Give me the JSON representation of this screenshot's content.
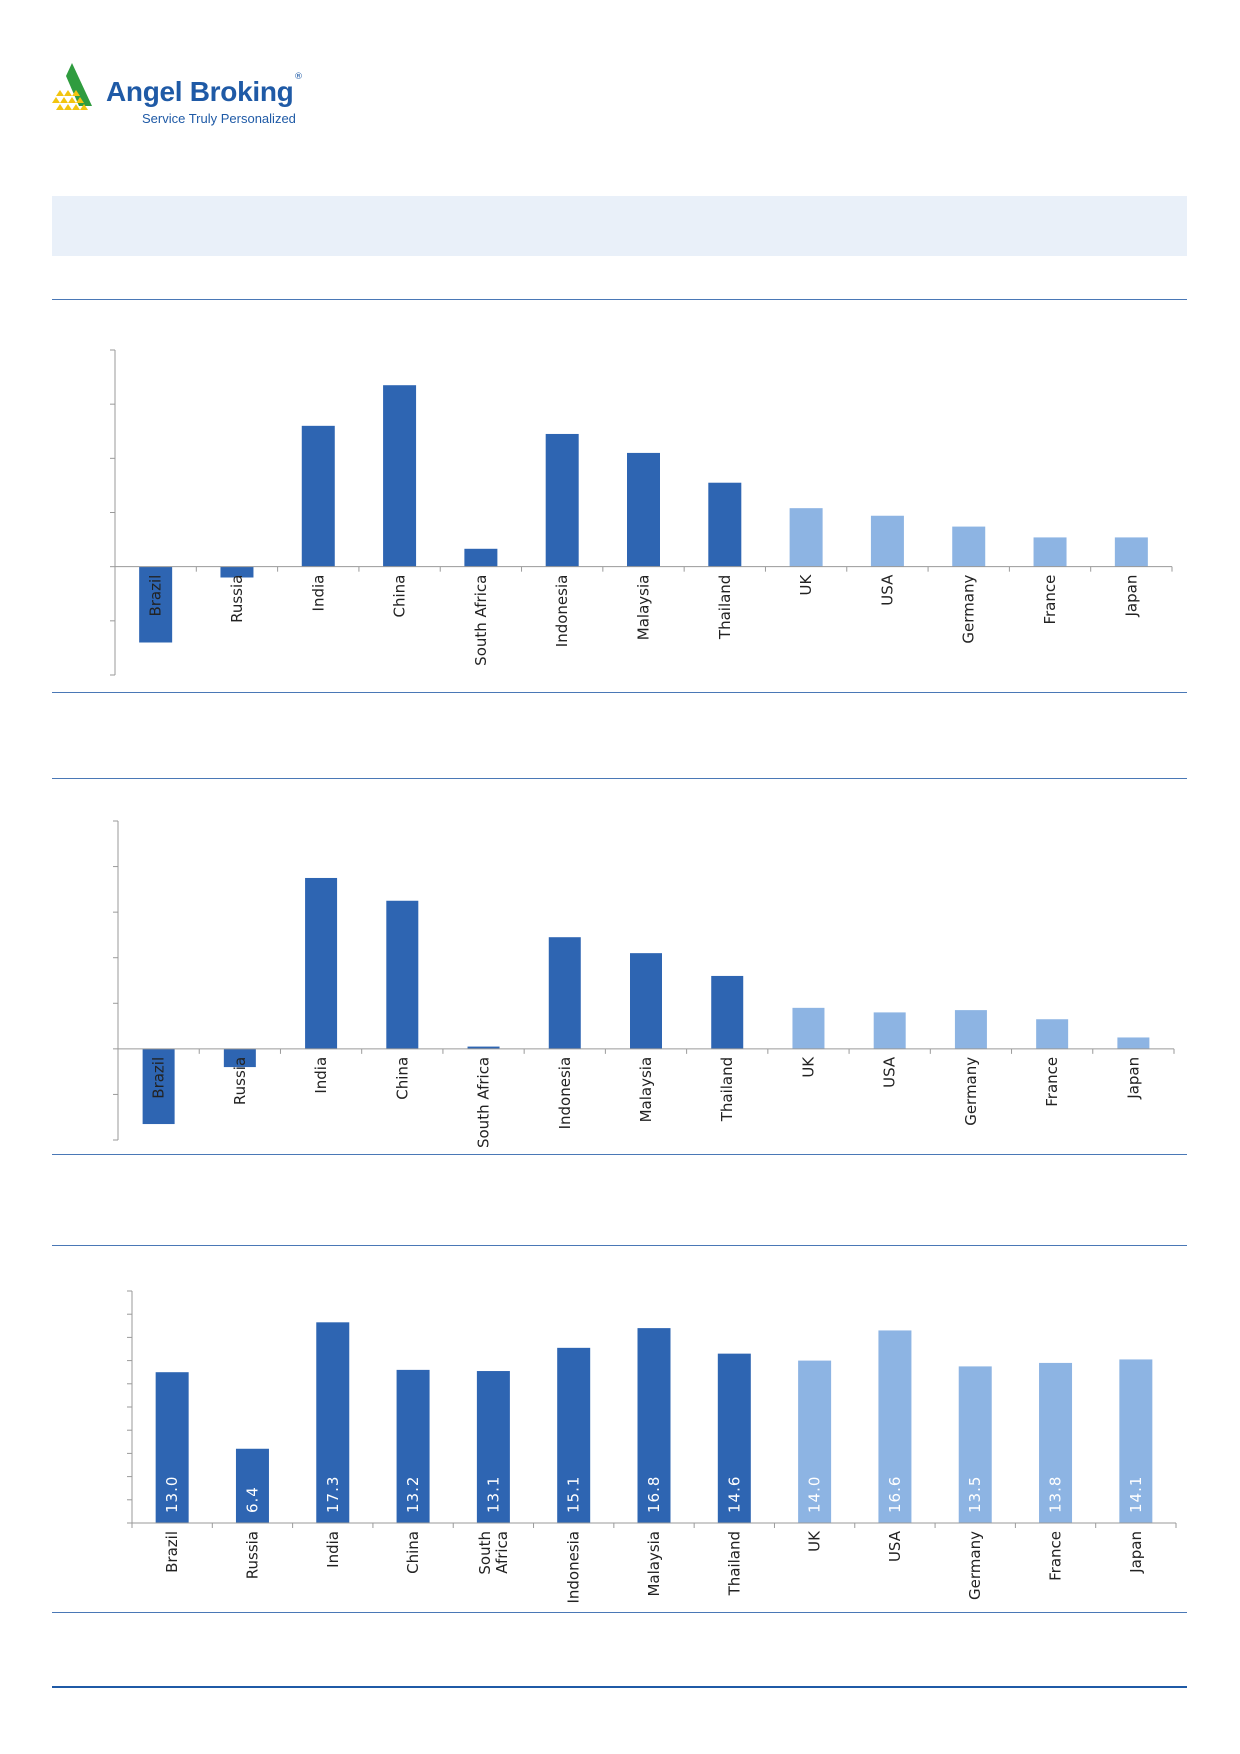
{
  "header": {
    "logo_name": "Angel Broking",
    "logo_registered": "®",
    "logo_tagline": "Service Truly Personalized"
  },
  "colors": {
    "emerging": "#2e65b2",
    "developed": "#8db4e3",
    "rule": "#4a78b6",
    "banner": "#e9f0f9"
  },
  "chart_data": [
    {
      "type": "bar",
      "categories": [
        "Brazil",
        "Russia",
        "India",
        "China",
        "South Africa",
        "Indonesia",
        "Malaysia",
        "Thailand",
        "UK",
        "USA",
        "Germany",
        "France",
        "Japan"
      ],
      "series": [
        {
          "values": [
            -14,
            -2,
            26,
            33.5,
            3.3,
            24.5,
            21,
            15.5,
            10.8,
            9.4,
            7.4,
            5.4,
            5.4
          ],
          "groups": [
            "emerging",
            "emerging",
            "emerging",
            "emerging",
            "emerging",
            "emerging",
            "emerging",
            "emerging",
            "developed",
            "developed",
            "developed",
            "developed",
            "developed"
          ]
        }
      ],
      "ylim": [
        -20,
        40
      ],
      "yticks": [
        -20,
        -10,
        0,
        10,
        20,
        30,
        40
      ],
      "labels_inside": false
    },
    {
      "type": "bar",
      "categories": [
        "Brazil",
        "Russia",
        "India",
        "China",
        "South Africa",
        "Indonesia",
        "Malaysia",
        "Thailand",
        "UK",
        "USA",
        "Germany",
        "France",
        "Japan"
      ],
      "series": [
        {
          "values": [
            -16.5,
            -4,
            37.5,
            32.5,
            0.5,
            24.5,
            21,
            16,
            9,
            8,
            8.5,
            6.5,
            2.5
          ],
          "groups": [
            "emerging",
            "emerging",
            "emerging",
            "emerging",
            "emerging",
            "emerging",
            "emerging",
            "emerging",
            "developed",
            "developed",
            "developed",
            "developed",
            "developed"
          ]
        }
      ],
      "ylim": [
        -20,
        50
      ],
      "yticks": [
        -20,
        -10,
        0,
        10,
        20,
        30,
        40,
        50
      ],
      "labels_inside": false
    },
    {
      "type": "bar",
      "categories": [
        "Brazil",
        "Russia",
        "India",
        "China",
        "South Africa",
        "Indonesia",
        "Malaysia",
        "Thailand",
        "UK",
        "USA",
        "Germany",
        "France",
        "Japan"
      ],
      "category_lines": [
        [
          "Brazil"
        ],
        [
          "Russia"
        ],
        [
          "India"
        ],
        [
          "China"
        ],
        [
          "South",
          "Africa"
        ],
        [
          "Indonesia"
        ],
        [
          "Malaysia"
        ],
        [
          "Thailand"
        ],
        [
          "UK"
        ],
        [
          "USA"
        ],
        [
          "Germany"
        ],
        [
          "France"
        ],
        [
          "Japan"
        ]
      ],
      "series": [
        {
          "values": [
            13.0,
            6.4,
            17.3,
            13.2,
            13.1,
            15.1,
            16.8,
            14.6,
            14.0,
            16.6,
            13.5,
            13.8,
            14.1
          ],
          "value_labels": [
            "13.0",
            "6.4",
            "17.3",
            "13.2",
            "13.1",
            "15.1",
            "16.8",
            "14.6",
            "14.0",
            "16.6",
            "13.5",
            "13.8",
            "14.1"
          ],
          "groups": [
            "emerging",
            "emerging",
            "emerging",
            "emerging",
            "emerging",
            "emerging",
            "emerging",
            "emerging",
            "developed",
            "developed",
            "developed",
            "developed",
            "developed"
          ]
        }
      ],
      "ylim": [
        0,
        20
      ],
      "yticks": [
        0,
        2,
        4,
        6,
        8,
        10,
        12,
        14,
        16,
        18,
        20
      ],
      "labels_inside": true
    }
  ]
}
